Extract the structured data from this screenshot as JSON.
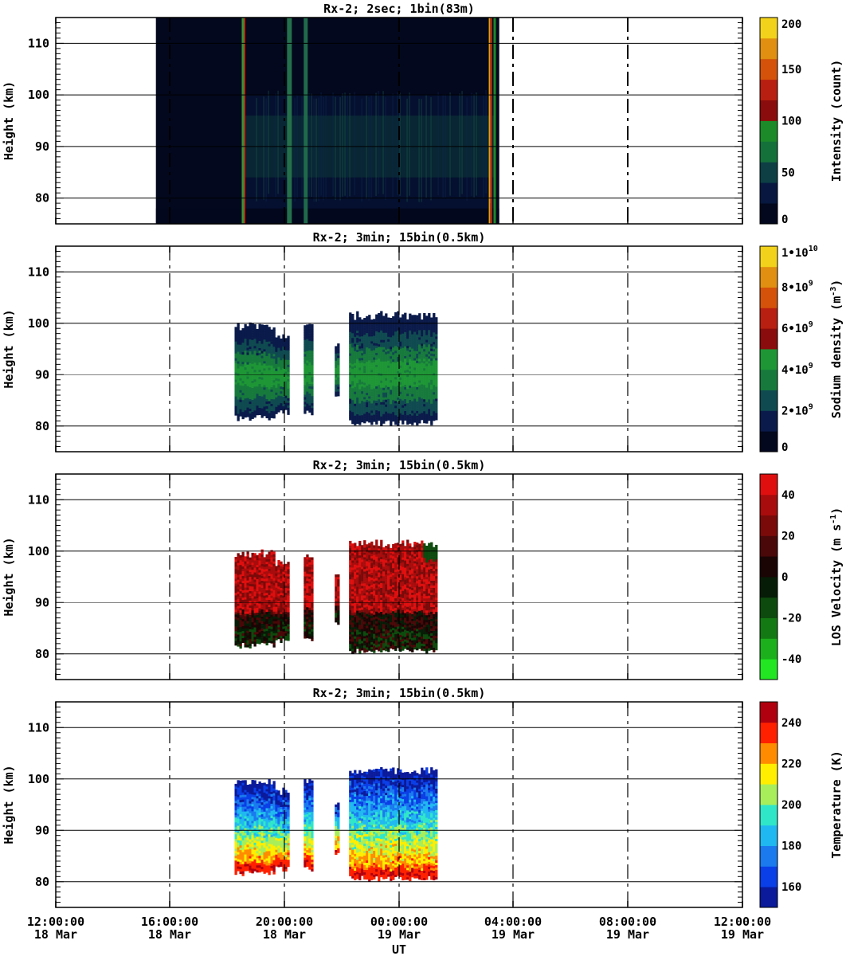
{
  "colors": {
    "intensity": [
      "#03081e",
      "#07173f",
      "#0d3f45",
      "#14713a",
      "#1c8a28",
      "#8a0c0c",
      "#b81f10",
      "#d4520a",
      "#e08f10",
      "#f2d21a"
    ],
    "sodium": [
      "#03081e",
      "#0a1a4a",
      "#0f4a50",
      "#177a3c",
      "#1e9636",
      "#8a0c0c",
      "#b81f10",
      "#d4520a",
      "#e08f10",
      "#f2d21a"
    ],
    "velocity": [
      "#22e622",
      "#1cb01c",
      "#137a13",
      "#0d4a0d",
      "#061c06",
      "#1a0404",
      "#4a0808",
      "#7a0a0a",
      "#a80c0c",
      "#e00f0f"
    ],
    "temperature": [
      "#0a1a9a",
      "#0a3ee6",
      "#1a7aee",
      "#20b8f0",
      "#30e6c8",
      "#a8ee5a",
      "#ffee00",
      "#ff8c00",
      "#ff2000",
      "#b00010"
    ]
  },
  "chart_data": [
    {
      "type": "heatmap",
      "title": "Rx-2;  2sec; 1bin(83m)",
      "ylabel": "Height (km)",
      "xlabel": "UT",
      "yticks": [
        "80",
        "90",
        "100",
        "110"
      ],
      "ylim": [
        75,
        115
      ],
      "xticks": [
        "12:00:00 18 Mar",
        "16:00:00 18 Mar",
        "20:00:00 18 Mar",
        "00:00:00 19 Mar",
        "04:00:00 19 Mar",
        "08:00:00 19 Mar",
        "12:00:00 19 Mar"
      ],
      "xlim": [
        "2017-03-18T12:00",
        "2017-03-19T12:00"
      ],
      "colorbar": {
        "label": "Intensity (count)",
        "ticks": [
          "0",
          "50",
          "100",
          "150",
          "200"
        ],
        "range": [
          0,
          200
        ]
      },
      "data_extent": {
        "x_start": "18 Mar 15:30",
        "x_end": "19 Mar 03:30",
        "y_range": [
          75,
          115
        ]
      },
      "layers": [
        {
          "y": [
            75,
            78
          ],
          "x": [
            "18 Mar 15:30",
            "19 Mar 03:30"
          ],
          "value": 10
        },
        {
          "y": [
            78,
            84
          ],
          "x": [
            "18 Mar 18:30",
            "19 Mar 03:20"
          ],
          "value": 35
        },
        {
          "y": [
            84,
            96
          ],
          "x": [
            "18 Mar 18:30",
            "19 Mar 03:20"
          ],
          "value": 55
        },
        {
          "y": [
            96,
            100
          ],
          "x": [
            "18 Mar 18:30",
            "19 Mar 03:20"
          ],
          "value": 30
        }
      ],
      "grid": true
    },
    {
      "type": "heatmap",
      "title": "Rx-2; 3min; 15bin(0.5km)",
      "ylabel": "Height (km)",
      "yticks": [
        "80",
        "90",
        "100",
        "110"
      ],
      "ylim": [
        75,
        115
      ],
      "xticks": [
        "12:00:00 18 Mar",
        "16:00:00 18 Mar",
        "20:00:00 18 Mar",
        "00:00:00 19 Mar",
        "04:00:00 19 Mar",
        "08:00:00 19 Mar",
        "12:00:00 19 Mar"
      ],
      "colorbar": {
        "label": "Sodium density (m-3)",
        "ticks": [
          "0",
          "2•10^9",
          "4•10^9",
          "6•10^9",
          "8•10^9",
          "1•10^10"
        ],
        "range": [
          0,
          10000000000.0
        ]
      },
      "segments": [
        {
          "x": [
            "18 Mar 18:15",
            "18 Mar 19:40"
          ],
          "y_range": [
            81,
            100
          ]
        },
        {
          "x": [
            "18 Mar 19:40",
            "18 Mar 20:10"
          ],
          "y_range": [
            82,
            98
          ]
        },
        {
          "x": [
            "18 Mar 20:40",
            "18 Mar 21:00"
          ],
          "y_range": [
            82,
            100
          ]
        },
        {
          "x": [
            "18 Mar 21:45",
            "18 Mar 21:55"
          ],
          "y_range": [
            85,
            96
          ]
        },
        {
          "x": [
            "18 Mar 22:15",
            "19 Mar 01:20"
          ],
          "y_range": [
            80,
            102
          ]
        }
      ],
      "grid": true
    },
    {
      "type": "heatmap",
      "title": "Rx-2; 3min; 15bin(0.5km)",
      "ylabel": "Height (km)",
      "yticks": [
        "80",
        "90",
        "100",
        "110"
      ],
      "ylim": [
        75,
        115
      ],
      "xticks": [
        "12:00:00 18 Mar",
        "16:00:00 18 Mar",
        "20:00:00 18 Mar",
        "00:00:00 19 Mar",
        "04:00:00 19 Mar",
        "08:00:00 19 Mar",
        "12:00:00 19 Mar"
      ],
      "colorbar": {
        "label": "LOS Velocity (m s-1)",
        "ticks": [
          "-40",
          "-20",
          "0",
          "20",
          "40"
        ],
        "range": [
          -50,
          50
        ]
      },
      "segments": [
        {
          "x": [
            "18 Mar 18:15",
            "18 Mar 19:40"
          ],
          "y_range": [
            81,
            100
          ]
        },
        {
          "x": [
            "18 Mar 19:40",
            "18 Mar 20:10"
          ],
          "y_range": [
            82,
            98
          ]
        },
        {
          "x": [
            "18 Mar 20:40",
            "18 Mar 21:00"
          ],
          "y_range": [
            82,
            100
          ]
        },
        {
          "x": [
            "18 Mar 21:45",
            "18 Mar 21:55"
          ],
          "y_range": [
            85,
            96
          ]
        },
        {
          "x": [
            "18 Mar 22:15",
            "19 Mar 01:20"
          ],
          "y_range": [
            80,
            102
          ]
        }
      ],
      "grid": true
    },
    {
      "type": "heatmap",
      "title": "Rx-2; 3min; 15bin(0.5km)",
      "ylabel": "Height (km)",
      "xlabel": "UT",
      "yticks": [
        "80",
        "90",
        "100",
        "110"
      ],
      "ylim": [
        75,
        115
      ],
      "xticks": [
        "12:00:00 18 Mar",
        "16:00:00 18 Mar",
        "20:00:00 18 Mar",
        "00:00:00 19 Mar",
        "04:00:00 19 Mar",
        "08:00:00 19 Mar",
        "12:00:00 19 Mar"
      ],
      "colorbar": {
        "label": "Temperature (K)",
        "ticks": [
          "160",
          "180",
          "200",
          "220",
          "240"
        ],
        "range": [
          150,
          250
        ]
      },
      "segments": [
        {
          "x": [
            "18 Mar 18:15",
            "18 Mar 19:40"
          ],
          "y_range": [
            81,
            100
          ]
        },
        {
          "x": [
            "18 Mar 19:40",
            "18 Mar 20:10"
          ],
          "y_range": [
            82,
            98
          ]
        },
        {
          "x": [
            "18 Mar 20:40",
            "18 Mar 21:00"
          ],
          "y_range": [
            82,
            100
          ]
        },
        {
          "x": [
            "18 Mar 21:45",
            "18 Mar 21:55"
          ],
          "y_range": [
            85,
            96
          ]
        },
        {
          "x": [
            "18 Mar 22:15",
            "19 Mar 01:20"
          ],
          "y_range": [
            80,
            102
          ]
        }
      ],
      "grid": true
    }
  ],
  "xaxis": {
    "label": "UT",
    "ticks": [
      {
        "time": "12:00:00",
        "date": "18 Mar"
      },
      {
        "time": "16:00:00",
        "date": "18 Mar"
      },
      {
        "time": "20:00:00",
        "date": "18 Mar"
      },
      {
        "time": "00:00:00",
        "date": "19 Mar"
      },
      {
        "time": "04:00:00",
        "date": "19 Mar"
      },
      {
        "time": "08:00:00",
        "date": "19 Mar"
      },
      {
        "time": "12:00:00",
        "date": "19 Mar"
      }
    ]
  }
}
